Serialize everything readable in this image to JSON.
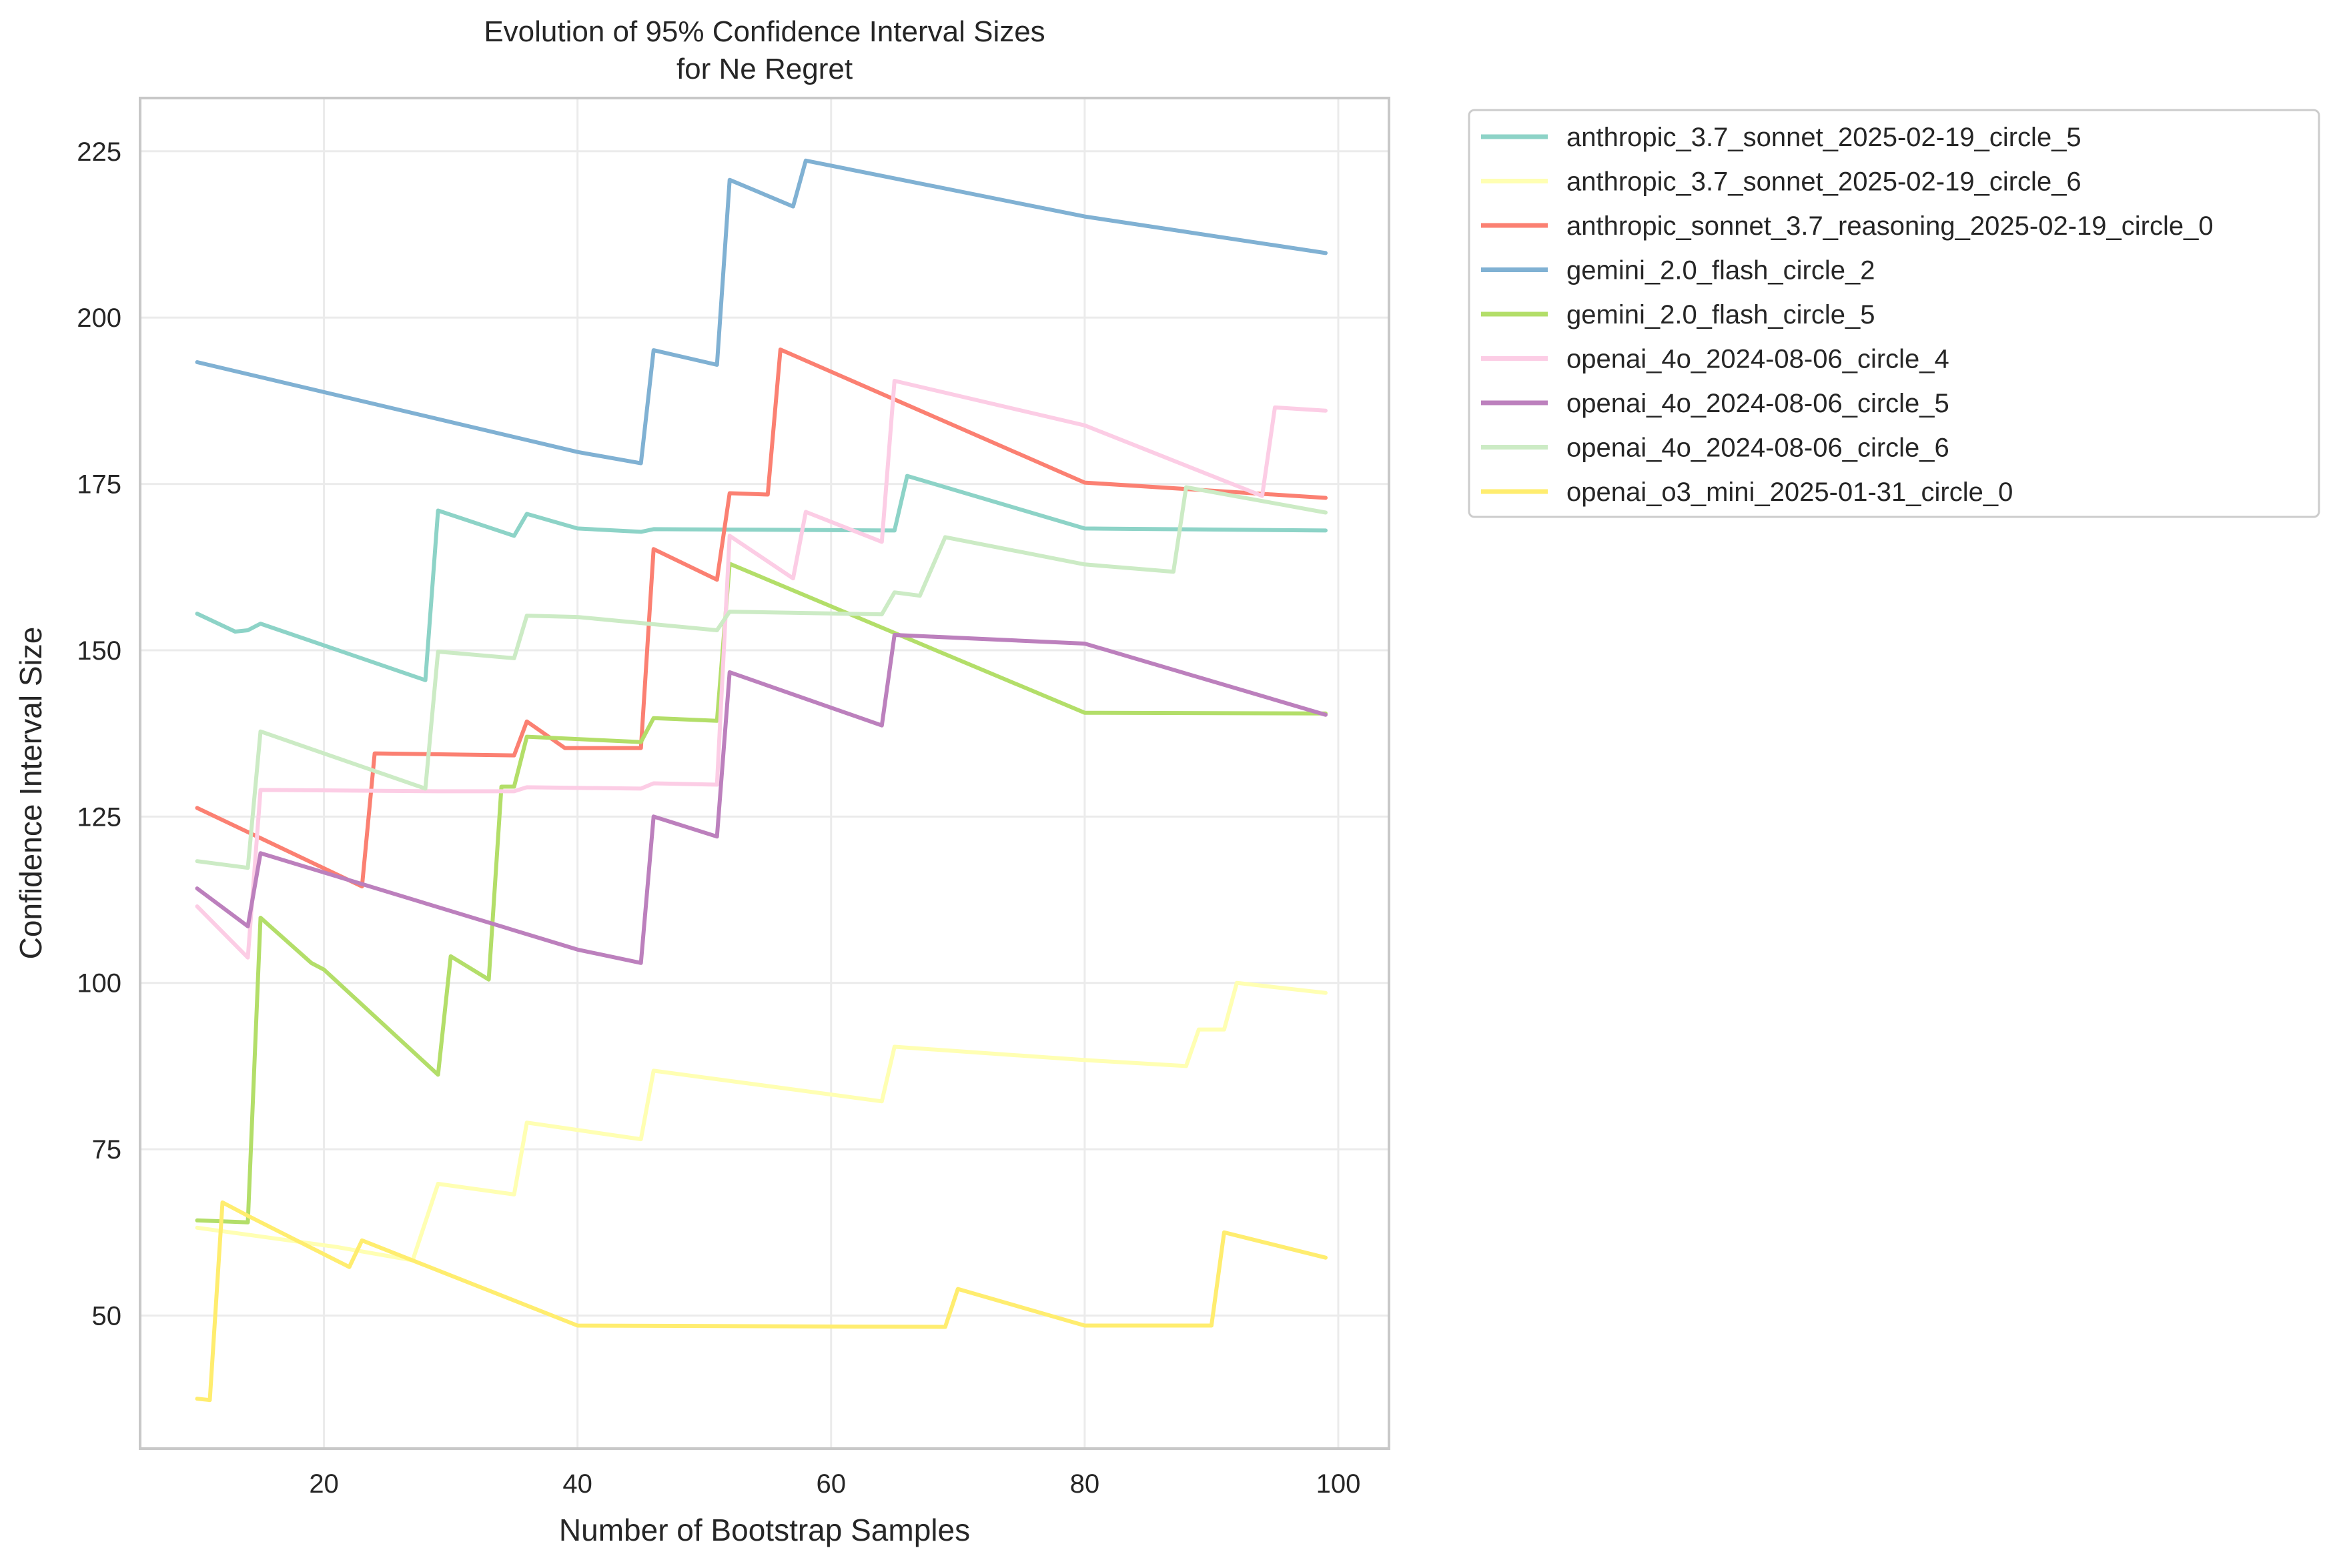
{
  "chart_data": {
    "type": "line",
    "title": "Evolution of 95% Confidence Interval Sizes",
    "subtitle": "for Ne Regret",
    "xlabel": "Number of Bootstrap Samples",
    "ylabel": "Confidence Interval Size",
    "xlim": [
      5.5,
      104
    ],
    "ylim": [
      30,
      233
    ],
    "xticks": [
      20,
      40,
      60,
      80,
      100
    ],
    "yticks": [
      50,
      75,
      100,
      125,
      150,
      175,
      200,
      225
    ],
    "grid": true,
    "legend_position": "outside-top-right",
    "series": [
      {
        "name": "anthropic_3.7_sonnet_2025-02-19_circle_5",
        "color": "#8dd3c7",
        "points": [
          [
            10,
            155.5
          ],
          [
            13,
            152.8
          ],
          [
            14,
            153
          ],
          [
            15,
            154
          ],
          [
            28,
            145.5
          ],
          [
            29,
            171
          ],
          [
            35,
            167.2
          ],
          [
            36,
            170.5
          ],
          [
            40,
            168.3
          ],
          [
            45,
            167.8
          ],
          [
            46,
            168.2
          ],
          [
            65,
            168
          ],
          [
            66,
            176.2
          ],
          [
            80,
            168.3
          ],
          [
            99,
            168
          ]
        ]
      },
      {
        "name": "anthropic_3.7_sonnet_2025-02-19_circle_6",
        "color": "#ffffb3",
        "points": [
          [
            10,
            63.2
          ],
          [
            21,
            60.3
          ],
          [
            27,
            58.3
          ],
          [
            29,
            69.8
          ],
          [
            35,
            68.2
          ],
          [
            36,
            79
          ],
          [
            45,
            76.5
          ],
          [
            46,
            86.8
          ],
          [
            64,
            82.2
          ],
          [
            65,
            90.4
          ],
          [
            80,
            88.4
          ],
          [
            88,
            87.5
          ],
          [
            89,
            93
          ],
          [
            91,
            93
          ],
          [
            92,
            100
          ],
          [
            99,
            98.5
          ]
        ]
      },
      {
        "name": "anthropic_sonnet_3.7_reasoning_2025-02-19_circle_0",
        "color": "#fb8072",
        "points": [
          [
            10,
            126.3
          ],
          [
            23,
            114.5
          ],
          [
            24,
            134.5
          ],
          [
            35,
            134.2
          ],
          [
            36,
            139.3
          ],
          [
            39,
            135.3
          ],
          [
            45,
            135.3
          ],
          [
            46,
            165.2
          ],
          [
            51,
            160.6
          ],
          [
            52,
            173.6
          ],
          [
            55,
            173.4
          ],
          [
            56,
            195.2
          ],
          [
            80,
            175.2
          ],
          [
            99,
            172.9
          ]
        ]
      },
      {
        "name": "gemini_2.0_flash_circle_2",
        "color": "#80b1d3",
        "points": [
          [
            10,
            193.3
          ],
          [
            40,
            179.8
          ],
          [
            45,
            178.1
          ],
          [
            46,
            195.1
          ],
          [
            51,
            192.9
          ],
          [
            52,
            220.7
          ],
          [
            57,
            216.7
          ],
          [
            58,
            223.6
          ],
          [
            80,
            215.2
          ],
          [
            99,
            209.7
          ]
        ]
      },
      {
        "name": "gemini_2.0_flash_circle_5",
        "color": "#b3de69",
        "points": [
          [
            10,
            64.3
          ],
          [
            14,
            64
          ],
          [
            15,
            109.8
          ],
          [
            19,
            103
          ],
          [
            20,
            102
          ],
          [
            29,
            86.2
          ],
          [
            30,
            104
          ],
          [
            33,
            100.5
          ],
          [
            34,
            129.5
          ],
          [
            35,
            129.5
          ],
          [
            36,
            137
          ],
          [
            45,
            136.2
          ],
          [
            46,
            139.8
          ],
          [
            51,
            139.4
          ],
          [
            52,
            163
          ],
          [
            80,
            140.6
          ],
          [
            99,
            140.5
          ]
        ]
      },
      {
        "name": "openai_4o_2024-08-06_circle_4",
        "color": "#fccde5",
        "points": [
          [
            10,
            111.5
          ],
          [
            14,
            103.8
          ],
          [
            15,
            129
          ],
          [
            29,
            128.8
          ],
          [
            35,
            128.8
          ],
          [
            36,
            129.4
          ],
          [
            45,
            129.2
          ],
          [
            46,
            130
          ],
          [
            51,
            129.8
          ],
          [
            52,
            167.2
          ],
          [
            57,
            160.8
          ],
          [
            58,
            170.8
          ],
          [
            64,
            166.3
          ],
          [
            65,
            190.5
          ],
          [
            80,
            183.8
          ],
          [
            94,
            173.2
          ],
          [
            95,
            186.5
          ],
          [
            99,
            186
          ]
        ]
      },
      {
        "name": "openai_4o_2024-08-06_circle_5",
        "color": "#bc80bd",
        "points": [
          [
            10,
            114.2
          ],
          [
            14,
            108.5
          ],
          [
            15,
            119.5
          ],
          [
            40,
            105
          ],
          [
            45,
            103
          ],
          [
            46,
            125
          ],
          [
            51,
            122
          ],
          [
            52,
            146.7
          ],
          [
            64,
            138.7
          ],
          [
            65,
            152.3
          ],
          [
            80,
            151
          ],
          [
            99,
            140.3
          ]
        ]
      },
      {
        "name": "openai_4o_2024-08-06_circle_6",
        "color": "#ccebc5",
        "points": [
          [
            10,
            118.3
          ],
          [
            14,
            117.3
          ],
          [
            15,
            137.8
          ],
          [
            28,
            129.2
          ],
          [
            29,
            149.8
          ],
          [
            35,
            148.8
          ],
          [
            36,
            155.2
          ],
          [
            40,
            155
          ],
          [
            51,
            153
          ],
          [
            52,
            155.8
          ],
          [
            64,
            155.4
          ],
          [
            65,
            158.7
          ],
          [
            67,
            158.2
          ],
          [
            69,
            167
          ],
          [
            80,
            162.9
          ],
          [
            87,
            161.8
          ],
          [
            88,
            174.5
          ],
          [
            99,
            170.7
          ]
        ]
      },
      {
        "name": "openai_o3_mini_2025-01-31_circle_0",
        "color": "#ffed6f",
        "points": [
          [
            10,
            37.5
          ],
          [
            11,
            37.3
          ],
          [
            12,
            67
          ],
          [
            14,
            65
          ],
          [
            22,
            57.3
          ],
          [
            23,
            61.3
          ],
          [
            40,
            48.5
          ],
          [
            69,
            48.3
          ],
          [
            70,
            54
          ],
          [
            80,
            48.5
          ],
          [
            90,
            48.5
          ],
          [
            91,
            62.5
          ],
          [
            99,
            58.7
          ]
        ]
      }
    ]
  }
}
